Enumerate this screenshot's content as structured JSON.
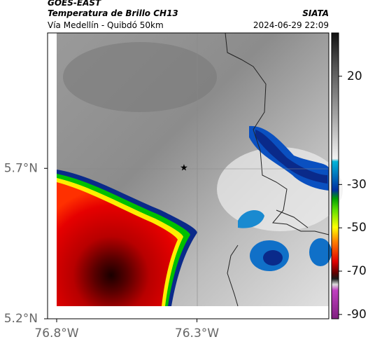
{
  "header": {
    "source": "GOES-EAST",
    "product": "Temperatura de Brillo CH13",
    "agency": "SIATA",
    "region": "Vía Medellín - Quibdó 50km",
    "datetime": "2024-06-29 22:09"
  },
  "map": {
    "lon_extent": [
      76.8,
      75.83
    ],
    "lat_extent": [
      5.2,
      6.15
    ],
    "lon_ticks": [
      {
        "value": 76.8,
        "label": "76.8°W"
      },
      {
        "value": 76.3,
        "label": "76.3°W"
      }
    ],
    "lat_ticks": [
      {
        "value": 5.7,
        "label": "5.7°N"
      },
      {
        "value": 5.2,
        "label": "5.2°N"
      }
    ]
  },
  "colorbar": {
    "lim": [
      -92,
      40
    ],
    "ticks": [
      20,
      -30,
      -50,
      -70,
      -90
    ]
  }
}
